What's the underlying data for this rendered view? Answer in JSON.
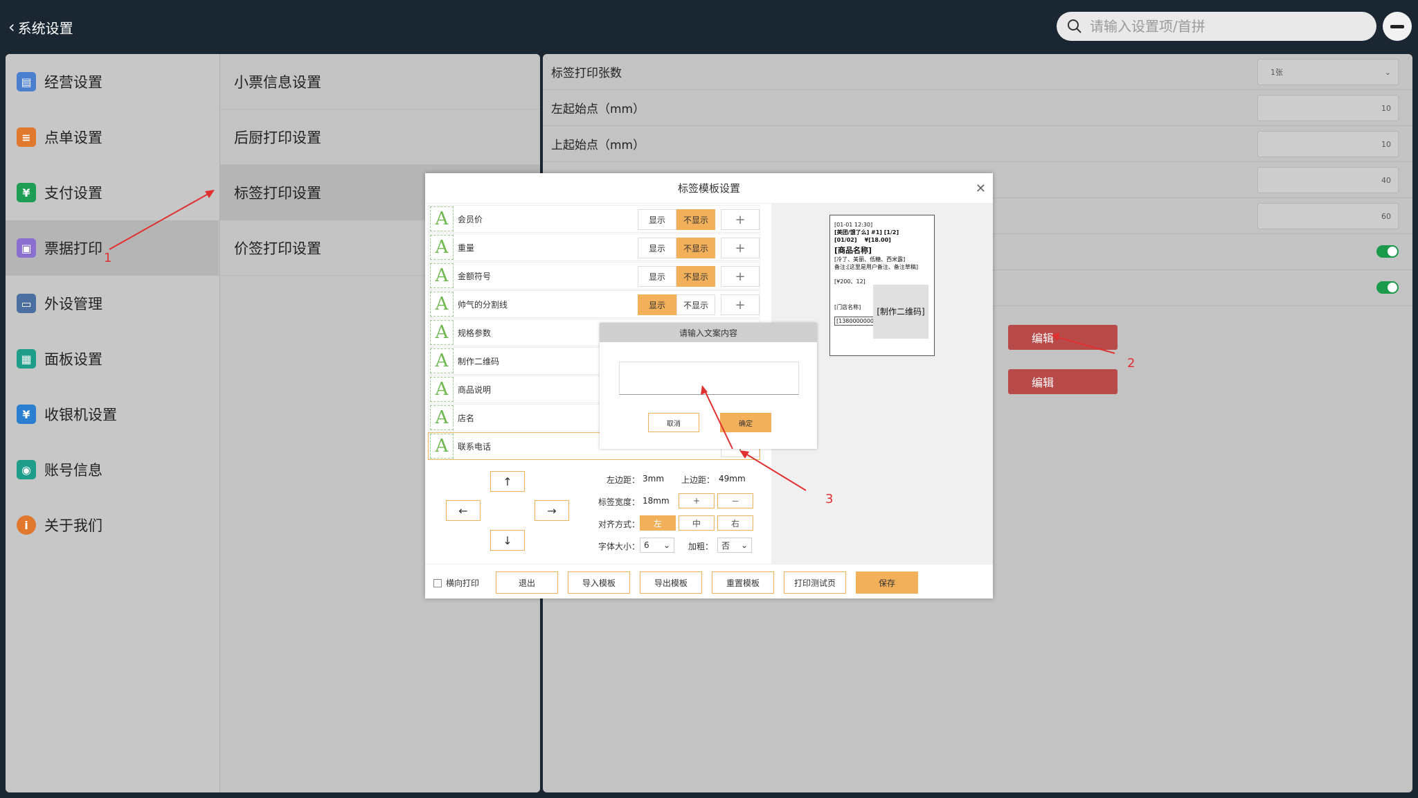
{
  "topbar": {
    "back_label": "系统设置",
    "search_placeholder": "请输入设置项/首拼"
  },
  "nav": [
    {
      "label": "经营设置",
      "icon": "store-settings-icon",
      "color": "#4a7fd0"
    },
    {
      "label": "点单设置",
      "icon": "order-icon",
      "color": "#e0792e"
    },
    {
      "label": "支付设置",
      "icon": "payment-icon",
      "color": "#1e9e55"
    },
    {
      "label": "票据打印",
      "icon": "printer-icon",
      "color": "#8a6fd0"
    },
    {
      "label": "外设管理",
      "icon": "peripheral-icon",
      "color": "#4a6fa0"
    },
    {
      "label": "面板设置",
      "icon": "panel-icon",
      "color": "#1e9e8a"
    },
    {
      "label": "收银机设置",
      "icon": "cashier-icon",
      "color": "#2a7fd0"
    },
    {
      "label": "账号信息",
      "icon": "account-icon",
      "color": "#1e9e8a"
    },
    {
      "label": "关于我们",
      "icon": "info-icon",
      "color": "#e0792e"
    }
  ],
  "subnav": [
    "小票信息设置",
    "后厨打印设置",
    "标签打印设置",
    "价签打印设置"
  ],
  "settings": {
    "print_count_label": "标签打印张数",
    "print_count_value": "1张",
    "left_start_label": "左起始点（mm）",
    "left_start_value": "10",
    "top_start_label": "上起始点（mm）",
    "top_start_value": "10",
    "row4_value": "40",
    "row5_value": "60",
    "edit1": "编辑",
    "edit2": "编辑"
  },
  "modal": {
    "title": "标签模板设置",
    "show": "显示",
    "hide": "不显示",
    "plus": "+",
    "fields": [
      {
        "name": "会员价",
        "state": "hide"
      },
      {
        "name": "重量",
        "state": "hide"
      },
      {
        "name": "金额符号",
        "state": "hide"
      },
      {
        "name": "帅气的分割线",
        "state": "show"
      },
      {
        "name": "规格参数",
        "state": "hide"
      },
      {
        "name": "制作二维码",
        "state": "hide"
      },
      {
        "name": "商品说明",
        "state": "hide"
      },
      {
        "name": "店名",
        "state": "hide"
      },
      {
        "name": "联系电话",
        "state": "hide"
      }
    ],
    "arrows": {
      "up": "↑",
      "down": "↓",
      "left": "←",
      "right": "→"
    },
    "left_margin_label": "左边距：",
    "left_margin_value": "3mm",
    "top_margin_label": "上边距：",
    "top_margin_value": "49mm",
    "label_width_label": "标签宽度：",
    "label_width_value": "18mm",
    "inc": "+",
    "dec": "－",
    "align_label": "对齐方式：",
    "align_left": "左",
    "align_center": "中",
    "align_right": "右",
    "font_size_label": "字体大小：",
    "font_size_value": "6",
    "bold_label": "加粗：",
    "bold_value": "否",
    "landscape_label": "横向打印",
    "btn_exit": "退出",
    "btn_import": "导入模板",
    "btn_export": "导出模板",
    "btn_reset": "重置模板",
    "btn_test": "打印测试页",
    "btn_save": "保存",
    "preview": {
      "line1": "[01-01 12:30]",
      "line2": "[美团/饿了么] #1] [1/2]",
      "line3": "[01/02]",
      "price": "¥[18.00]",
      "product": "[商品名称]",
      "spec": "[冷了、美丽、低糖、西米露]",
      "remark": "备注:[这里是用户备注、备注草稿]",
      "size": "[¥200、12]",
      "store": "[门店名称]",
      "phone": "[13800000000]",
      "qr": "[制作二维码]"
    }
  },
  "subdialog": {
    "title": "请输入文案内容",
    "cancel": "取消",
    "confirm": "确定"
  },
  "annotations": [
    "1",
    "2",
    "3"
  ]
}
